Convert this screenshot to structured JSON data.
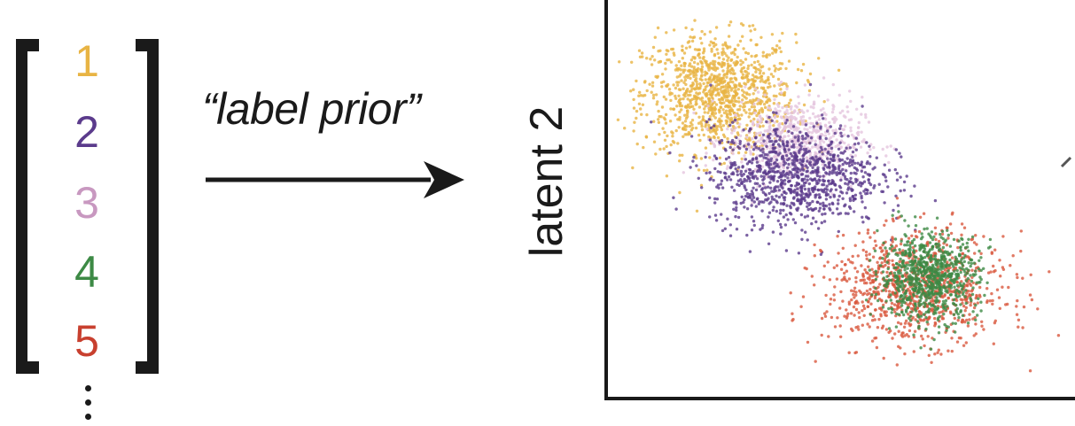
{
  "labels": [
    {
      "text": "1",
      "color": "#e8b444"
    },
    {
      "text": "2",
      "color": "#5b3b8c"
    },
    {
      "text": "3",
      "color": "#c898c0"
    },
    {
      "text": "4",
      "color": "#3d8a45"
    },
    {
      "text": "5",
      "color": "#c8402f"
    }
  ],
  "arrow_caption": "“label prior”",
  "chart_data": {
    "type": "scatter",
    "xlabel": "",
    "ylabel": "latent 2",
    "grid": false,
    "legend": "none",
    "series": [
      {
        "label_ref": "1",
        "color": "#e8b444",
        "center": [
          2.2,
          7.6
        ],
        "spread": [
          0.85,
          0.75
        ],
        "count": 1100
      },
      {
        "label_ref": "3",
        "color": "#e5c6de",
        "center": [
          3.9,
          6.4
        ],
        "spread": [
          0.75,
          0.55
        ],
        "count": 650
      },
      {
        "label_ref": "2",
        "color": "#5b3b8c",
        "center": [
          3.9,
          5.5
        ],
        "spread": [
          0.95,
          0.65
        ],
        "count": 1000
      },
      {
        "label_ref": "5",
        "color": "#d9593e",
        "center": [
          6.6,
          2.6
        ],
        "spread": [
          1.0,
          0.7
        ],
        "count": 950
      },
      {
        "label_ref": "4",
        "color": "#3d8a45",
        "center": [
          6.9,
          2.9
        ],
        "spread": [
          0.55,
          0.55
        ],
        "count": 800
      }
    ],
    "xlim": [
      0,
      10
    ],
    "ylim": [
      0,
      10
    ]
  }
}
